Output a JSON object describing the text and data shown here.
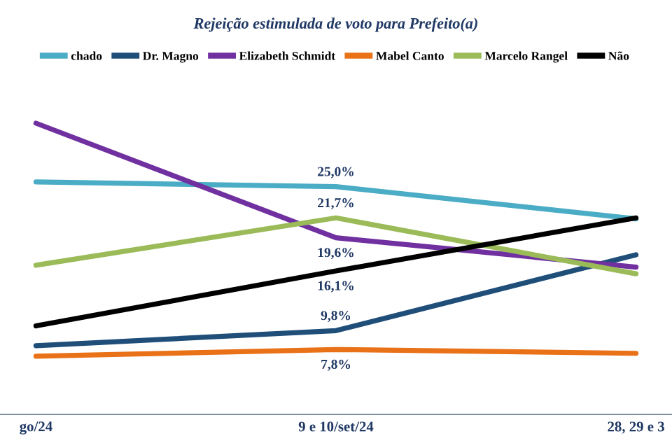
{
  "chart_data": {
    "type": "line",
    "title": "Rejeição estimulada de voto para Prefeito(a)",
    "categories": [
      "go/24",
      "9 e 10/set/24",
      "28, 29 e 3"
    ],
    "series": [
      {
        "name": "chado",
        "color": "#4bacc6",
        "values": [
          25.5,
          25.0,
          21.6
        ],
        "value_labels": [
          null,
          "25,0%",
          null
        ]
      },
      {
        "name": "Dr. Magno",
        "color": "#1f4e79",
        "values": [
          8.2,
          9.8,
          17.8
        ],
        "value_labels": [
          null,
          "9,8%",
          null
        ]
      },
      {
        "name": "Elizabeth Schmidt",
        "color": "#7030a0",
        "values": [
          31.7,
          19.6,
          16.5
        ],
        "value_labels": [
          null,
          "19,6%",
          null
        ]
      },
      {
        "name": "Mabel Canto",
        "color": "#e97117",
        "values": [
          7.1,
          7.8,
          7.4
        ],
        "value_labels": [
          null,
          "7,8%",
          null
        ]
      },
      {
        "name": "Marcelo Rangel",
        "color": "#9bbb59",
        "values": [
          16.7,
          21.7,
          15.8
        ],
        "value_labels": [
          null,
          "21,7%",
          null
        ]
      },
      {
        "name": "Não",
        "color": "#000000",
        "values": [
          10.3,
          16.1,
          21.7
        ],
        "value_labels": [
          null,
          "16,1%",
          null
        ]
      }
    ],
    "tick_labels": "x",
    "grid": false,
    "legend": "top",
    "marker": "none",
    "line_style": "solid"
  }
}
